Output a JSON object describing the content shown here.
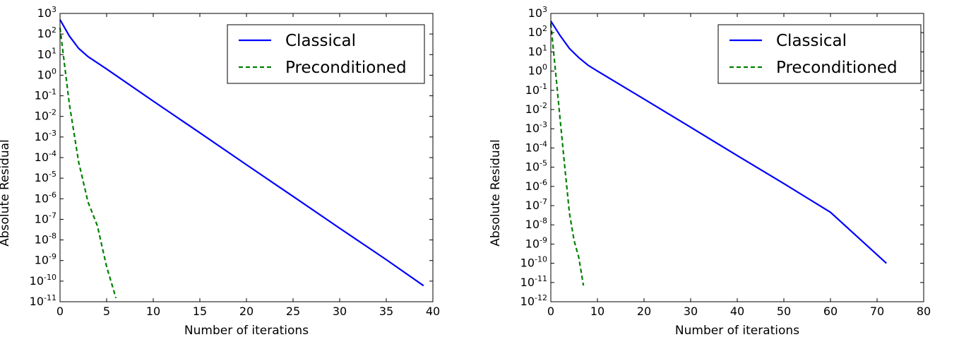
{
  "chart_data": [
    {
      "type": "line",
      "title": "",
      "xlabel": "Number of iterations",
      "ylabel": "Absolute Residual",
      "xlim": [
        0,
        40
      ],
      "ylim_exponent": [
        -11,
        3
      ],
      "yscale": "log",
      "x_ticks": [
        0,
        5,
        10,
        15,
        20,
        25,
        30,
        35,
        40
      ],
      "y_tick_exponents": [
        -11,
        -10,
        -9,
        -8,
        -7,
        -6,
        -5,
        -4,
        -3,
        -2,
        -1,
        0,
        1,
        2,
        3
      ],
      "legend_position": "top-right",
      "grid": false,
      "series": [
        {
          "name": "Classical",
          "color": "#0000ff",
          "style": "solid",
          "x": [
            0,
            1,
            2,
            3,
            5,
            10,
            15,
            20,
            25,
            30,
            35,
            39
          ],
          "y": [
            500,
            80,
            20,
            8,
            2,
            0.055,
            0.0016,
            4.5e-05,
            1.3e-06,
            3.7e-08,
            1.1e-09,
            6e-11
          ]
        },
        {
          "name": "Preconditioned",
          "color": "#008000",
          "style": "dashed",
          "x": [
            0,
            1,
            2,
            3,
            4,
            5,
            6
          ],
          "y": [
            200,
            0.04,
            6e-05,
            7e-07,
            5e-08,
            5e-10,
            1.5e-11
          ]
        }
      ]
    },
    {
      "type": "line",
      "title": "",
      "xlabel": "Number of iterations",
      "ylabel": "Absolute Residual",
      "xlim": [
        0,
        80
      ],
      "ylim_exponent": [
        -12,
        3
      ],
      "yscale": "log",
      "x_ticks": [
        0,
        10,
        20,
        30,
        40,
        50,
        60,
        70,
        80
      ],
      "y_tick_exponents": [
        -12,
        -11,
        -10,
        -9,
        -8,
        -7,
        -6,
        -5,
        -4,
        -3,
        -2,
        -1,
        0,
        1,
        2,
        3
      ],
      "legend_position": "top-right",
      "grid": false,
      "series": [
        {
          "name": "Classical",
          "color": "#0000ff",
          "style": "solid",
          "x": [
            0,
            2,
            4,
            6,
            8,
            10,
            20,
            30,
            40,
            50,
            60,
            72
          ],
          "y": [
            400,
            70,
            15,
            5,
            2,
            1,
            0.035,
            0.0012,
            4e-05,
            1.4e-06,
            4.5e-08,
            1e-10
          ]
        },
        {
          "name": "Preconditioned",
          "color": "#008000",
          "style": "dashed",
          "x": [
            0,
            1,
            2,
            3,
            4,
            5,
            6,
            7
          ],
          "y": [
            300,
            1,
            0.003,
            1e-05,
            4e-08,
            1.5e-09,
            2e-10,
            7e-12
          ]
        }
      ]
    }
  ]
}
